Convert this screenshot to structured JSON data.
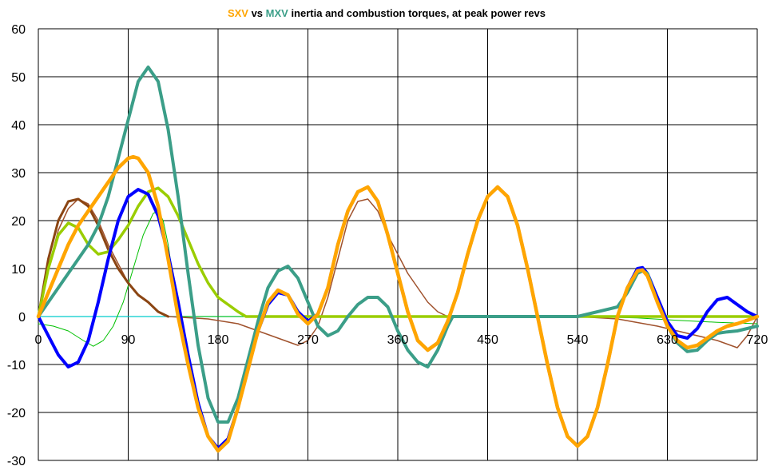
{
  "chart_data": {
    "type": "line",
    "title": {
      "parts": [
        {
          "text": "SXV",
          "color": "#ffa500"
        },
        {
          "text": " vs ",
          "color": "#000000"
        },
        {
          "text": "MXV",
          "color": "#3b9e88"
        },
        {
          "text": " inertia and combustion torques, at peak power revs",
          "color": "#000000"
        }
      ]
    },
    "xlabel": "",
    "ylabel": "",
    "xlim": [
      0,
      720
    ],
    "ylim": [
      -30,
      60
    ],
    "x_ticks": [
      0,
      90,
      180,
      270,
      360,
      450,
      540,
      630,
      720
    ],
    "y_ticks": [
      -30,
      -20,
      -10,
      0,
      10,
      20,
      30,
      40,
      50,
      60
    ],
    "grid": true,
    "legend": "none",
    "series": [
      {
        "color": "#00cccc",
        "width": 1.2,
        "points": [
          [
            0,
            0
          ],
          [
            720,
            0
          ]
        ]
      },
      {
        "color": "#00c000",
        "width": 1,
        "points": [
          [
            0,
            -1.5
          ],
          [
            15,
            -2
          ],
          [
            30,
            -3
          ],
          [
            45,
            -5
          ],
          [
            55,
            -6.2
          ],
          [
            65,
            -5
          ],
          [
            75,
            -2
          ],
          [
            85,
            3
          ],
          [
            95,
            10
          ],
          [
            105,
            17
          ],
          [
            115,
            21.5
          ],
          [
            120,
            22
          ],
          [
            125,
            20
          ],
          [
            130,
            15
          ],
          [
            137,
            5
          ],
          [
            142,
            0
          ],
          [
            150,
            0
          ],
          [
            180,
            0
          ],
          [
            300,
            0
          ],
          [
            420,
            0
          ],
          [
            540,
            0
          ],
          [
            600,
            -0.3
          ],
          [
            640,
            -0.8
          ],
          [
            680,
            -1.2
          ],
          [
            720,
            -1.5
          ]
        ]
      },
      {
        "color": "#a0522d",
        "width": 1.5,
        "points": [
          [
            0,
            0
          ],
          [
            10,
            10
          ],
          [
            20,
            18
          ],
          [
            30,
            22.5
          ],
          [
            40,
            24.5
          ],
          [
            50,
            23.5
          ],
          [
            60,
            20
          ],
          [
            70,
            15
          ],
          [
            80,
            11
          ],
          [
            90,
            7
          ],
          [
            100,
            4.5
          ],
          [
            110,
            3
          ],
          [
            120,
            1
          ],
          [
            130,
            0
          ],
          [
            170,
            -0.5
          ],
          [
            200,
            -1.5
          ],
          [
            220,
            -3
          ],
          [
            240,
            -4.5
          ],
          [
            260,
            -6
          ],
          [
            270,
            -5
          ],
          [
            280,
            -2
          ],
          [
            290,
            4
          ],
          [
            300,
            12
          ],
          [
            310,
            20
          ],
          [
            320,
            24
          ],
          [
            330,
            24.5
          ],
          [
            340,
            22
          ],
          [
            350,
            17
          ],
          [
            360,
            13
          ],
          [
            370,
            9
          ],
          [
            380,
            6
          ],
          [
            390,
            3
          ],
          [
            400,
            1
          ],
          [
            410,
            0
          ],
          [
            540,
            0
          ],
          [
            580,
            -0.5
          ],
          [
            620,
            -2
          ],
          [
            650,
            -3.5
          ],
          [
            680,
            -5
          ],
          [
            700,
            -6.5
          ],
          [
            710,
            -4
          ],
          [
            720,
            0
          ]
        ]
      },
      {
        "color": "#8b4513",
        "width": 3,
        "points": [
          [
            0,
            0
          ],
          [
            10,
            12
          ],
          [
            20,
            20
          ],
          [
            30,
            24
          ],
          [
            40,
            24.5
          ],
          [
            50,
            23
          ],
          [
            60,
            19
          ],
          [
            70,
            14
          ],
          [
            80,
            10
          ],
          [
            90,
            7
          ],
          [
            100,
            4.5
          ],
          [
            110,
            3
          ],
          [
            120,
            1
          ],
          [
            130,
            0
          ]
        ]
      },
      {
        "color": "#9acd00",
        "width": 3.5,
        "points": [
          [
            0,
            0
          ],
          [
            10,
            10
          ],
          [
            20,
            17
          ],
          [
            30,
            19.5
          ],
          [
            40,
            18.5
          ],
          [
            50,
            15
          ],
          [
            60,
            13
          ],
          [
            70,
            13.5
          ],
          [
            80,
            16
          ],
          [
            90,
            19
          ],
          [
            100,
            23
          ],
          [
            110,
            26
          ],
          [
            120,
            26.8
          ],
          [
            130,
            25
          ],
          [
            140,
            21
          ],
          [
            150,
            16
          ],
          [
            160,
            11
          ],
          [
            170,
            7
          ],
          [
            180,
            4
          ],
          [
            190,
            2.5
          ],
          [
            200,
            1
          ],
          [
            208,
            0
          ],
          [
            720,
            0
          ]
        ]
      },
      {
        "color": "#0000ff",
        "width": 4,
        "points": [
          [
            0,
            0
          ],
          [
            10,
            -4
          ],
          [
            20,
            -8
          ],
          [
            30,
            -10.5
          ],
          [
            40,
            -9.5
          ],
          [
            50,
            -5
          ],
          [
            60,
            3
          ],
          [
            70,
            12
          ],
          [
            80,
            20
          ],
          [
            90,
            25
          ],
          [
            100,
            26.5
          ],
          [
            110,
            25.5
          ],
          [
            120,
            21
          ],
          [
            130,
            13
          ],
          [
            140,
            3
          ],
          [
            150,
            -8
          ],
          [
            160,
            -18
          ],
          [
            170,
            -25
          ],
          [
            180,
            -27.5
          ],
          [
            190,
            -25.5
          ],
          [
            200,
            -19
          ],
          [
            210,
            -11
          ],
          [
            220,
            -3
          ],
          [
            230,
            2.5
          ],
          [
            240,
            5
          ],
          [
            250,
            4.5
          ],
          [
            260,
            1
          ],
          [
            270,
            -1
          ],
          [
            280,
            0.5
          ],
          [
            290,
            6
          ],
          [
            300,
            15
          ],
          [
            310,
            22
          ],
          [
            320,
            26
          ],
          [
            330,
            27
          ],
          [
            340,
            24
          ],
          [
            350,
            17
          ],
          [
            360,
            9
          ],
          [
            370,
            1
          ],
          [
            380,
            -5
          ],
          [
            390,
            -7
          ],
          [
            400,
            -5.5
          ],
          [
            410,
            -1
          ],
          [
            420,
            5
          ],
          [
            430,
            13
          ],
          [
            440,
            20
          ],
          [
            450,
            25
          ],
          [
            460,
            27
          ],
          [
            470,
            25
          ],
          [
            480,
            19
          ],
          [
            490,
            10
          ],
          [
            500,
            0
          ],
          [
            510,
            -10
          ],
          [
            520,
            -19
          ],
          [
            530,
            -25
          ],
          [
            540,
            -27
          ],
          [
            550,
            -25
          ],
          [
            560,
            -19
          ],
          [
            570,
            -10
          ],
          [
            580,
            0
          ],
          [
            590,
            6
          ],
          [
            600,
            10
          ],
          [
            605,
            10.2
          ],
          [
            610,
            9
          ],
          [
            620,
            4
          ],
          [
            630,
            -1
          ],
          [
            640,
            -4
          ],
          [
            650,
            -4.5
          ],
          [
            660,
            -2.5
          ],
          [
            670,
            1
          ],
          [
            680,
            3.5
          ],
          [
            690,
            4
          ],
          [
            700,
            2.5
          ],
          [
            710,
            1
          ],
          [
            720,
            0
          ]
        ]
      },
      {
        "color": "#3b9e88",
        "width": 4,
        "points": [
          [
            0,
            0
          ],
          [
            10,
            3
          ],
          [
            20,
            6
          ],
          [
            30,
            9
          ],
          [
            40,
            12
          ],
          [
            50,
            15
          ],
          [
            60,
            19
          ],
          [
            70,
            25
          ],
          [
            80,
            33
          ],
          [
            90,
            41
          ],
          [
            100,
            49
          ],
          [
            110,
            52
          ],
          [
            120,
            49
          ],
          [
            130,
            39
          ],
          [
            140,
            25
          ],
          [
            150,
            9
          ],
          [
            160,
            -6
          ],
          [
            170,
            -17
          ],
          [
            180,
            -22
          ],
          [
            190,
            -22
          ],
          [
            200,
            -17
          ],
          [
            210,
            -9
          ],
          [
            220,
            -1
          ],
          [
            230,
            6
          ],
          [
            240,
            9.5
          ],
          [
            250,
            10.5
          ],
          [
            260,
            8
          ],
          [
            270,
            3
          ],
          [
            280,
            -2
          ],
          [
            290,
            -4
          ],
          [
            300,
            -3
          ],
          [
            310,
            0
          ],
          [
            320,
            2.5
          ],
          [
            330,
            4
          ],
          [
            340,
            4
          ],
          [
            350,
            2
          ],
          [
            360,
            -3
          ],
          [
            370,
            -7
          ],
          [
            380,
            -9.5
          ],
          [
            390,
            -10.5
          ],
          [
            400,
            -7
          ],
          [
            410,
            -2
          ],
          [
            415,
            0
          ],
          [
            540,
            0
          ],
          [
            580,
            2
          ],
          [
            590,
            5
          ],
          [
            600,
            9
          ],
          [
            605,
            9.5
          ],
          [
            610,
            9
          ],
          [
            620,
            3
          ],
          [
            630,
            -2
          ],
          [
            640,
            -5.5
          ],
          [
            650,
            -7.3
          ],
          [
            660,
            -7
          ],
          [
            670,
            -5
          ],
          [
            680,
            -3.5
          ],
          [
            690,
            -3.2
          ],
          [
            700,
            -3
          ],
          [
            710,
            -2.5
          ],
          [
            720,
            -2
          ]
        ]
      },
      {
        "color": "#ffa500",
        "width": 4.5,
        "points": [
          [
            0,
            0
          ],
          [
            10,
            5
          ],
          [
            20,
            10
          ],
          [
            30,
            15
          ],
          [
            40,
            19
          ],
          [
            50,
            22
          ],
          [
            60,
            25
          ],
          [
            70,
            28
          ],
          [
            80,
            31
          ],
          [
            90,
            33
          ],
          [
            95,
            33.3
          ],
          [
            100,
            33
          ],
          [
            110,
            30
          ],
          [
            120,
            23
          ],
          [
            130,
            12
          ],
          [
            140,
            0
          ],
          [
            150,
            -10
          ],
          [
            160,
            -19
          ],
          [
            170,
            -25
          ],
          [
            180,
            -28
          ],
          [
            190,
            -26
          ],
          [
            200,
            -19
          ],
          [
            210,
            -11
          ],
          [
            220,
            -3
          ],
          [
            230,
            3
          ],
          [
            240,
            5.5
          ],
          [
            250,
            4.5
          ],
          [
            260,
            0.5
          ],
          [
            270,
            -1.5
          ],
          [
            280,
            0.5
          ],
          [
            290,
            6
          ],
          [
            300,
            15
          ],
          [
            310,
            22
          ],
          [
            320,
            26
          ],
          [
            330,
            27
          ],
          [
            340,
            24
          ],
          [
            350,
            17
          ],
          [
            360,
            9
          ],
          [
            370,
            1
          ],
          [
            380,
            -5
          ],
          [
            390,
            -7
          ],
          [
            400,
            -5.5
          ],
          [
            410,
            -1
          ],
          [
            420,
            5
          ],
          [
            430,
            13
          ],
          [
            440,
            20
          ],
          [
            450,
            25
          ],
          [
            460,
            27
          ],
          [
            470,
            25
          ],
          [
            480,
            19
          ],
          [
            490,
            10
          ],
          [
            500,
            0
          ],
          [
            510,
            -10
          ],
          [
            520,
            -19
          ],
          [
            530,
            -25
          ],
          [
            540,
            -27
          ],
          [
            550,
            -25
          ],
          [
            560,
            -19
          ],
          [
            570,
            -10
          ],
          [
            580,
            0
          ],
          [
            590,
            6
          ],
          [
            600,
            9.5
          ],
          [
            605,
            9.7
          ],
          [
            610,
            8.5
          ],
          [
            620,
            3
          ],
          [
            630,
            -2
          ],
          [
            640,
            -5
          ],
          [
            650,
            -6.5
          ],
          [
            660,
            -6
          ],
          [
            670,
            -4.5
          ],
          [
            680,
            -3
          ],
          [
            690,
            -2
          ],
          [
            700,
            -1.5
          ],
          [
            710,
            -0.8
          ],
          [
            720,
            0
          ]
        ]
      }
    ]
  }
}
